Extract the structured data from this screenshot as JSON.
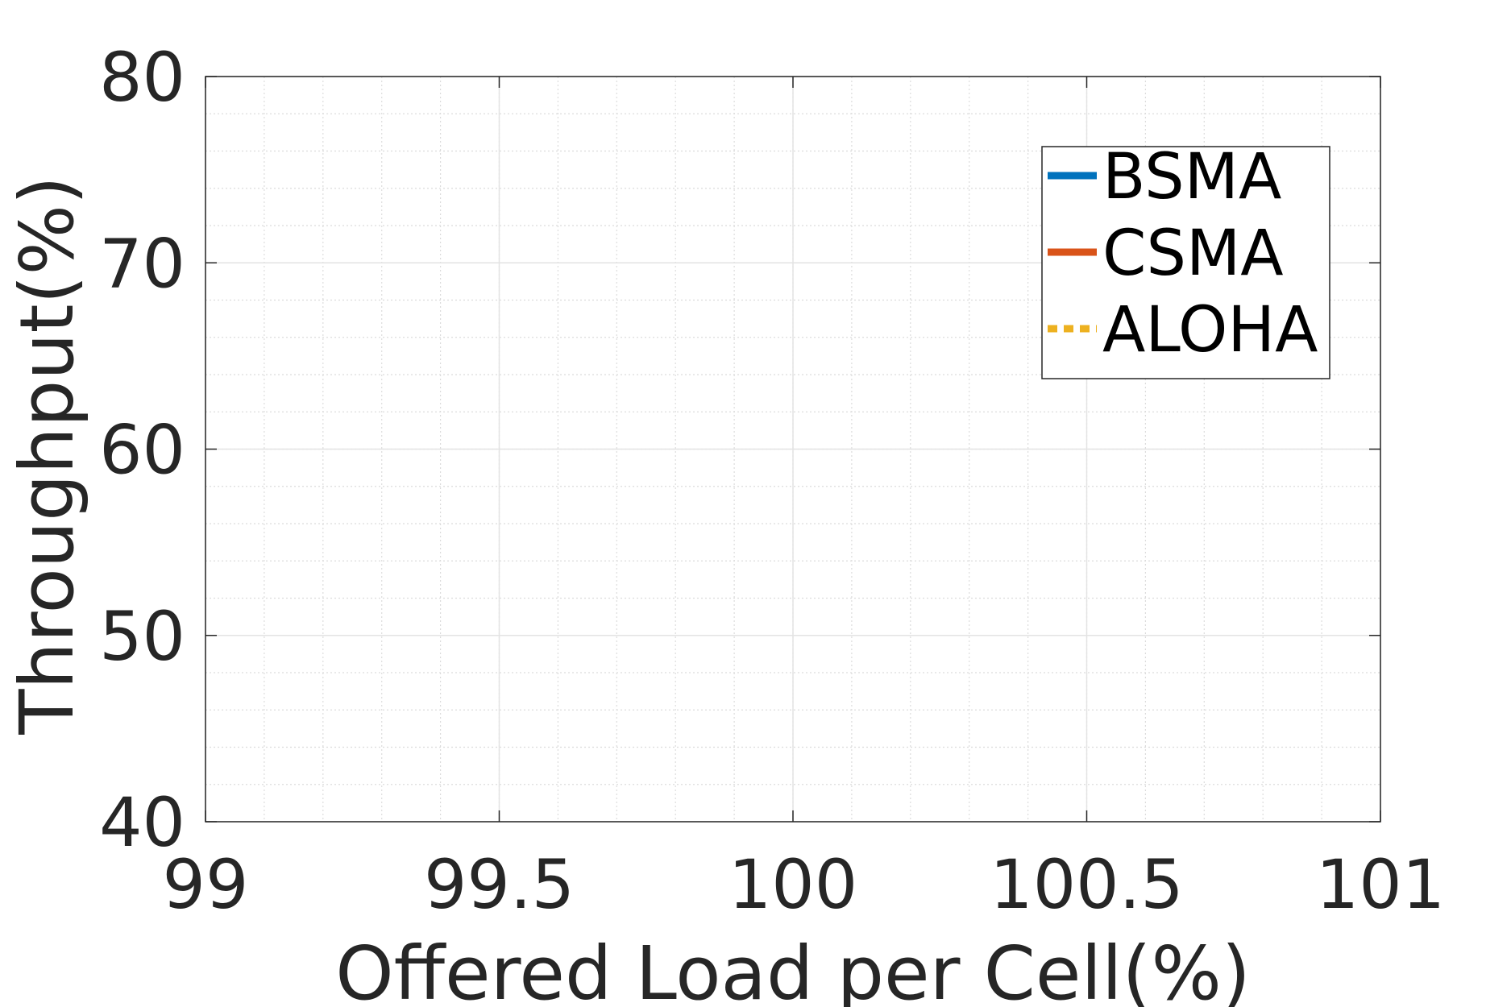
{
  "chart_data": {
    "type": "line",
    "title": "",
    "xlabel": "Offered Load per Cell(%)",
    "ylabel": "Throughput(%)",
    "xlim": [
      99,
      101
    ],
    "ylim": [
      40,
      80
    ],
    "x_ticks": [
      99,
      99.5,
      100,
      100.5,
      101
    ],
    "x_tick_labels": [
      "99",
      "99.5",
      "100",
      "100.5",
      "101"
    ],
    "y_ticks": [
      40,
      50,
      60,
      70,
      80
    ],
    "y_tick_labels": [
      "40",
      "50",
      "60",
      "70",
      "80"
    ],
    "grid": true,
    "minor_grid": true,
    "legend_position": "top-right",
    "series": [
      {
        "name": "BSMA",
        "color": "#0072BD",
        "line_style": "solid",
        "x": [],
        "y": []
      },
      {
        "name": "CSMA",
        "color": "#D95319",
        "line_style": "solid",
        "x": [],
        "y": []
      },
      {
        "name": "ALOHA",
        "color": "#EDB120",
        "line_style": "dotted",
        "x": [],
        "y": []
      }
    ]
  }
}
